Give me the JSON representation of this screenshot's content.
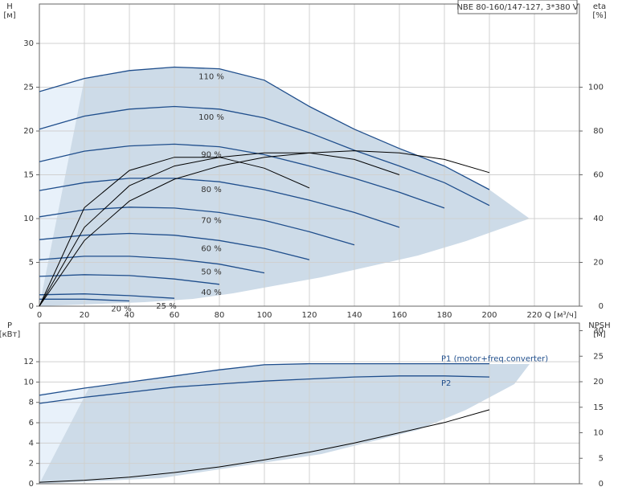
{
  "chart_data": [
    {
      "type": "line",
      "title": "NBE 80-160/147-127, 3*380 V",
      "ylabel": "H",
      "yunit": "[м]",
      "y2label": "eta",
      "y2unit": "[%]",
      "xlabel": "Q [м³/ч]",
      "xlim": [
        0,
        240
      ],
      "xticks": [
        0,
        20,
        40,
        60,
        80,
        100,
        120,
        140,
        160,
        180,
        200,
        220
      ],
      "ylim": [
        0,
        34.5
      ],
      "yticks": [
        0,
        5,
        10,
        15,
        20,
        25,
        30
      ],
      "y2lim": [
        0,
        138
      ],
      "y2ticks": [
        0,
        20,
        40,
        60,
        80,
        100
      ],
      "grid": true,
      "legend": "inline-middle",
      "x": [
        0,
        20,
        40,
        60,
        80,
        100,
        120,
        140,
        160,
        180,
        200,
        220
      ],
      "series": [
        {
          "name": "110 %",
          "color": "#1f4e8c",
          "values": [
            24.5,
            26,
            26.9,
            27.3,
            27.1,
            25.8,
            22.8,
            20.2,
            18,
            16,
            13.3,
            null
          ]
        },
        {
          "name": "100 %",
          "color": "#1f4e8c",
          "values": [
            20.2,
            21.7,
            22.5,
            22.8,
            22.5,
            21.5,
            19.8,
            17.8,
            16,
            14.1,
            11.5,
            null
          ]
        },
        {
          "name": "90 %",
          "color": "#1f4e8c",
          "values": [
            16.5,
            17.7,
            18.3,
            18.5,
            18.2,
            17.3,
            16,
            14.6,
            13,
            11.2,
            null,
            null
          ]
        },
        {
          "name": "80 %",
          "color": "#1f4e8c",
          "values": [
            13.2,
            14.1,
            14.6,
            14.6,
            14.2,
            13.3,
            12.1,
            10.7,
            9,
            null,
            null,
            null
          ]
        },
        {
          "name": "70 %",
          "color": "#1f4e8c",
          "values": [
            10.2,
            11,
            11.3,
            11.2,
            10.7,
            9.8,
            8.5,
            7,
            null,
            null,
            null,
            null
          ]
        },
        {
          "name": "60 %",
          "color": "#1f4e8c",
          "values": [
            7.6,
            8.1,
            8.3,
            8.1,
            7.5,
            6.6,
            5.3,
            null,
            null,
            null,
            null,
            null
          ]
        },
        {
          "name": "50 %",
          "color": "#1f4e8c",
          "values": [
            5.3,
            5.7,
            5.7,
            5.4,
            4.8,
            3.8,
            null,
            null,
            null,
            null,
            null,
            null
          ]
        },
        {
          "name": "40 %",
          "color": "#1f4e8c",
          "values": [
            3.4,
            3.6,
            3.5,
            3.1,
            2.5,
            null,
            null,
            null,
            null,
            null,
            null,
            null
          ]
        },
        {
          "name": "25 %",
          "color": "#1f4e8c",
          "values": [
            1.3,
            1.4,
            1.2,
            0.9,
            null,
            null,
            null,
            null,
            null,
            null,
            null,
            null
          ]
        },
        {
          "name": "20 %",
          "color": "#1f4e8c",
          "values": [
            0.8,
            0.8,
            0.6,
            null,
            null,
            null,
            null,
            null,
            null,
            null,
            null,
            null
          ]
        },
        {
          "axis": "y2",
          "color": "#000000",
          "values": [
            0,
            30,
            48,
            58,
            64,
            68,
            70,
            71,
            70,
            67,
            61,
            null
          ]
        },
        {
          "axis": "y2",
          "color": "#000000",
          "values": [
            0,
            36,
            55,
            64,
            68,
            70,
            70,
            67,
            60,
            null,
            null,
            null
          ]
        },
        {
          "axis": "y2",
          "color": "#000000",
          "values": [
            0,
            45,
            62,
            68,
            68,
            63,
            54,
            null,
            null,
            null,
            null,
            null
          ]
        }
      ]
    },
    {
      "type": "line",
      "ylabel": "P",
      "yunit": "[кВт]",
      "y2label": "NPSH",
      "y2unit": "[м]",
      "xlim": [
        0,
        240
      ],
      "xticks": [
        0,
        20,
        40,
        60,
        80,
        100,
        120,
        140,
        160,
        180,
        200,
        220
      ],
      "xtick_labels": false,
      "ylim": [
        0,
        15.8
      ],
      "yticks": [
        0,
        2,
        4,
        6,
        8,
        10,
        12
      ],
      "y2lim": [
        0,
        31.5
      ],
      "y2ticks": [
        0,
        5,
        10,
        15,
        20,
        25,
        30
      ],
      "grid": true,
      "legend": "inline-end",
      "x": [
        0,
        20,
        40,
        60,
        80,
        100,
        120,
        140,
        160,
        180,
        200,
        220
      ],
      "series": [
        {
          "name": "P1 (motor+freq.converter)",
          "color": "#1f4e8c",
          "values": [
            8.7,
            9.4,
            10,
            10.6,
            11.2,
            11.7,
            11.8,
            11.8,
            11.8,
            11.8,
            11.8,
            null
          ]
        },
        {
          "name": "P2",
          "color": "#1f4e8c",
          "values": [
            7.9,
            8.5,
            9,
            9.5,
            9.8,
            10.1,
            10.3,
            10.5,
            10.6,
            10.6,
            10.5,
            null
          ]
        },
        {
          "axis": "y2",
          "color": "#000000",
          "values": [
            0.3,
            0.7,
            1.3,
            2.2,
            3.3,
            4.7,
            6.2,
            8,
            10,
            12,
            14.5,
            null
          ]
        }
      ]
    }
  ]
}
